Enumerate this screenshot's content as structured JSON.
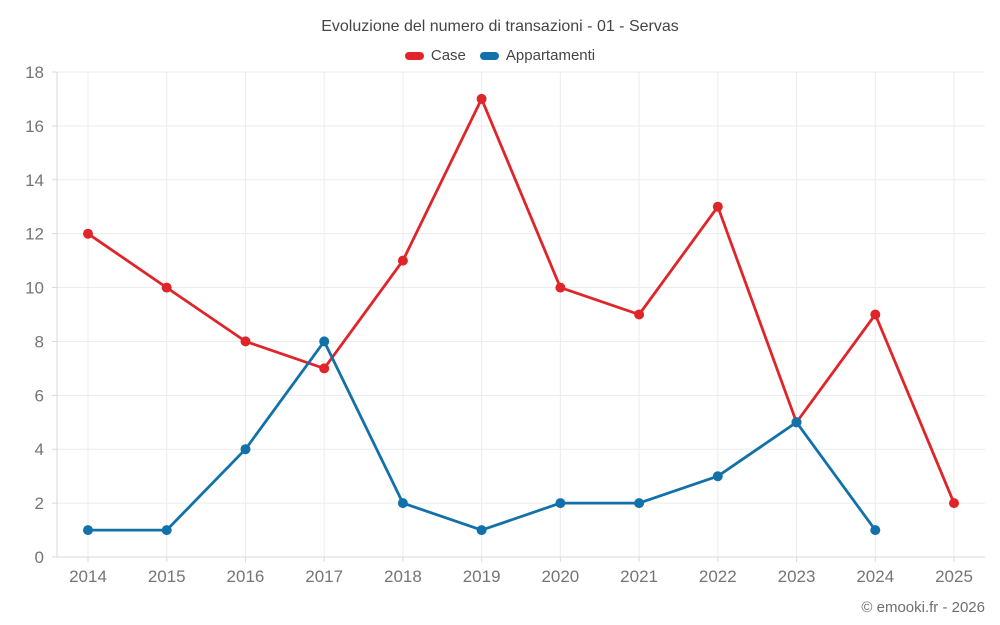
{
  "page": {
    "title": "Evoluzione del numero di transazioni - 01 - Servas",
    "footer": "© emooki.fr - 2026"
  },
  "legend": {
    "items": [
      {
        "label": "Case",
        "color": "#e0252a"
      },
      {
        "label": "Appartamenti",
        "color": "#1371a9"
      }
    ]
  },
  "chart_data": {
    "type": "line",
    "title": "Evoluzione del numero di transazioni - 01 - Servas",
    "categories": [
      "2014",
      "2015",
      "2016",
      "2017",
      "2018",
      "2019",
      "2020",
      "2021",
      "2022",
      "2023",
      "2024",
      "2025"
    ],
    "series": [
      {
        "name": "Case",
        "color": "#e0252a",
        "values": [
          12,
          10,
          8,
          7,
          11,
          17,
          10,
          9,
          13,
          5,
          9,
          2
        ]
      },
      {
        "name": "Appartamenti",
        "color": "#1371a9",
        "values": [
          1,
          1,
          4,
          8,
          2,
          1,
          2,
          2,
          3,
          5,
          1,
          null
        ]
      }
    ],
    "xlabel": "",
    "ylabel": "",
    "ylim": [
      0,
      18
    ],
    "yticks": [
      0,
      2,
      4,
      6,
      8,
      10,
      12,
      14,
      16,
      18
    ],
    "grid": true,
    "legend_position": "top",
    "grid_color": "#ececec",
    "axis_color": "#d9d9d9",
    "tick_label_color": "#757575"
  }
}
